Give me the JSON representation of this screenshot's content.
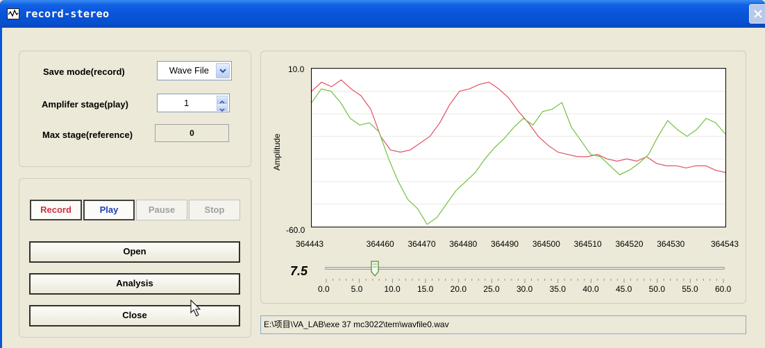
{
  "window": {
    "title": "record-stereo"
  },
  "settings": {
    "save_mode_label": "Save mode(record)",
    "save_mode_value": "Wave File",
    "amp_label": "Amplifer stage(play)",
    "amp_value": "1",
    "max_label": "Max stage(reference)",
    "max_value": "0"
  },
  "transport": {
    "record": "Record",
    "play": "Play",
    "pause": "Pause",
    "stop": "Stop"
  },
  "actions": {
    "open": "Open",
    "analysis": "Analysis",
    "close": "Close"
  },
  "chart_data": {
    "type": "line",
    "ylabel": "Amplitude",
    "ylim": [
      -60.0,
      10.0
    ],
    "ytick_labels": [
      "10.0",
      "-60.0"
    ],
    "xlim": [
      364443,
      364543
    ],
    "xtick_labels": [
      "364443",
      "364460",
      "364470",
      "364480",
      "364490",
      "364500",
      "364510",
      "364520",
      "364530",
      "364543"
    ],
    "xticks": [
      364443,
      364460,
      364470,
      364480,
      364490,
      364500,
      364510,
      364520,
      364530,
      364543
    ],
    "series": [
      {
        "color": "#e05060",
        "values": [
          0,
          4,
          2,
          5,
          1,
          -2,
          -8,
          -20,
          -26,
          -27,
          -26,
          -23,
          -20,
          -14,
          -6,
          0,
          1,
          3,
          4,
          1,
          -3,
          -9,
          -14,
          -20,
          -24,
          -27,
          -28,
          -29,
          -29,
          -28,
          -30,
          -31,
          -30,
          -31,
          -29,
          -32,
          -33,
          -33,
          -34,
          -33,
          -33,
          -35,
          -36
        ]
      },
      {
        "color": "#70c040",
        "values": [
          -5,
          1,
          0,
          -5,
          -12,
          -15,
          -14,
          -18,
          -30,
          -40,
          -48,
          -52,
          -59,
          -56,
          -50,
          -44,
          -40,
          -36,
          -30,
          -25,
          -21,
          -16,
          -12,
          -15,
          -9,
          -8,
          -5,
          -16,
          -22,
          -28,
          -29,
          -33,
          -37,
          -35,
          -32,
          -28,
          -20,
          -13,
          -17,
          -20,
          -17,
          -12,
          -14,
          -19
        ]
      }
    ]
  },
  "slider": {
    "value": "7.5",
    "value_num": 7.5,
    "min": 0,
    "max": 60,
    "labels": [
      "0.0",
      "5.0",
      "10.0",
      "15.0",
      "20.0",
      "25.0",
      "30.0",
      "35.0",
      "40.0",
      "45.0",
      "50.0",
      "55.0",
      "60.0"
    ]
  },
  "file_path": "E:\\项目\\VA_LAB\\exe 37 mc3022\\tem\\wavfile0.wav",
  "colors": {
    "titlebar": "#0a54d8",
    "record": "#d03040",
    "play": "#2040b8"
  }
}
